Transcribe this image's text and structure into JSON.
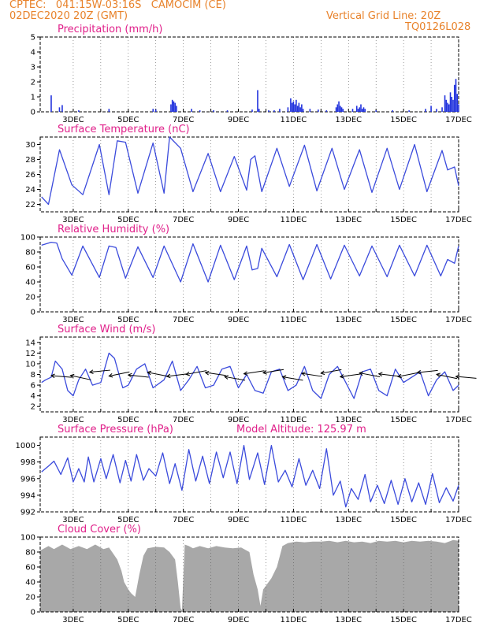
{
  "header": {
    "line1": "CPTEC:   041:15W-03:16S   CAMOCIM (CE)",
    "line2": "02DEC2020 20Z (GMT)",
    "right1": "Vertical Grid Line: 20Z",
    "right2": "TQ0126L028"
  },
  "colors": {
    "line": "#3b4bdc",
    "bar": "#2233dd",
    "cloud": "#a8a8a8",
    "header": "#e8822a",
    "title": "#e0208a"
  },
  "x_labels": [
    "3DEC",
    "5DEC",
    "7DEC",
    "9DEC",
    "11DEC",
    "13DEC",
    "15DEC",
    "17DEC"
  ],
  "chart_data": [
    {
      "id": "precip",
      "type": "bar",
      "title": "Precipitation (mm/h)",
      "ylim": [
        0,
        5
      ],
      "yticks": [
        "0",
        "1",
        "2",
        "3",
        "4",
        "5"
      ],
      "x_days": [
        2.2,
        2.5,
        2.6,
        3.2,
        4.3,
        5.9,
        6.0,
        6.55,
        6.6,
        6.65,
        6.7,
        6.75,
        7.3,
        7.6,
        8.1,
        8.6,
        9.5,
        9.7,
        9.75,
        10.1,
        10.3,
        10.5,
        10.8,
        10.9,
        10.95,
        11.0,
        11.05,
        11.1,
        11.15,
        11.2,
        11.25,
        11.3,
        11.35,
        11.6,
        11.9,
        12.2,
        12.55,
        12.6,
        12.65,
        12.7,
        12.75,
        12.8,
        13.15,
        13.3,
        13.35,
        13.4,
        13.45,
        13.5,
        13.55,
        13.6,
        14.0,
        14.6,
        15.2,
        15.8,
        16.0,
        16.2,
        16.4,
        16.5,
        16.55,
        16.6,
        16.65,
        16.7,
        16.75,
        16.8,
        16.85,
        16.9,
        16.95,
        17.0
      ],
      "values": [
        1.1,
        0.3,
        0.45,
        0.1,
        0.2,
        0.2,
        0.15,
        0.5,
        0.8,
        0.7,
        0.6,
        0.4,
        0.2,
        0.1,
        0.1,
        0.1,
        0.15,
        1.45,
        0.2,
        0.1,
        0.1,
        0.2,
        0.3,
        0.9,
        0.6,
        0.7,
        0.5,
        0.8,
        0.4,
        0.6,
        0.3,
        0.5,
        0.2,
        0.2,
        0.15,
        0.1,
        0.3,
        0.5,
        0.7,
        0.4,
        0.3,
        0.2,
        0.2,
        0.4,
        0.2,
        0.3,
        0.5,
        0.2,
        0.3,
        0.2,
        0.1,
        0.1,
        0.1,
        0.2,
        0.4,
        0.2,
        0.3,
        1.1,
        0.8,
        0.6,
        0.5,
        1.3,
        1.0,
        0.8,
        1.8,
        2.2,
        1.2,
        0.5
      ]
    },
    {
      "id": "temp",
      "type": "line",
      "title": "Surface Temperature (nC)",
      "ylim": [
        21,
        31
      ],
      "yticks": [
        "22",
        "24",
        "26",
        "28",
        "30"
      ],
      "x_days": [
        1.85,
        2.1,
        2.5,
        2.95,
        3.35,
        3.95,
        4.3,
        4.6,
        4.9,
        5.35,
        5.9,
        6.3,
        6.5,
        6.9,
        7.35,
        7.9,
        8.35,
        8.85,
        9.3,
        9.45,
        9.6,
        9.85,
        10.4,
        10.85,
        11.4,
        11.85,
        12.4,
        12.85,
        13.4,
        13.85,
        14.4,
        14.85,
        15.4,
        15.85,
        16.4,
        16.6,
        16.85,
        17.0
      ],
      "values": [
        23.0,
        22.0,
        29.3,
        24.6,
        23.3,
        30.0,
        23.3,
        30.5,
        30.3,
        23.5,
        30.2,
        23.5,
        31.0,
        29.5,
        23.7,
        28.8,
        23.7,
        28.4,
        23.9,
        28.0,
        28.5,
        23.7,
        29.5,
        24.4,
        29.9,
        23.8,
        29.5,
        24.0,
        29.3,
        23.6,
        29.5,
        24.0,
        30.0,
        23.7,
        29.2,
        26.6,
        27.0,
        24.5
      ]
    },
    {
      "id": "rh",
      "type": "line",
      "title": "Relative Humidity (%)",
      "ylim": [
        0,
        100
      ],
      "yticks": [
        "0",
        "20",
        "40",
        "60",
        "80",
        "100"
      ],
      "x_days": [
        1.85,
        2.2,
        2.4,
        2.6,
        2.95,
        3.35,
        3.95,
        4.3,
        4.55,
        4.9,
        5.35,
        5.9,
        6.3,
        6.9,
        7.35,
        7.9,
        8.35,
        8.85,
        9.3,
        9.5,
        9.7,
        9.85,
        10.4,
        10.85,
        11.35,
        11.85,
        12.35,
        12.85,
        13.4,
        13.85,
        14.4,
        14.85,
        15.4,
        15.85,
        16.35,
        16.6,
        16.85,
        17.0
      ],
      "values": [
        89.0,
        93.0,
        92.0,
        71.0,
        49.0,
        88.0,
        46.0,
        88.0,
        86.0,
        45.0,
        87.0,
        46.0,
        88.0,
        40.0,
        91.0,
        40.0,
        89.0,
        43.0,
        88.0,
        56.0,
        58.0,
        85.0,
        47.0,
        90.0,
        43.0,
        90.0,
        44.0,
        89.0,
        48.0,
        88.0,
        47.0,
        89.0,
        48.0,
        89.0,
        48.0,
        70.0,
        65.0,
        88.0
      ]
    },
    {
      "id": "wind",
      "type": "line",
      "title": "Surface Wind (m/s)",
      "ylim": [
        1,
        15
      ],
      "yticks": [
        "2",
        "4",
        "6",
        "8",
        "10",
        "12",
        "14"
      ],
      "x_days": [
        1.85,
        2.0,
        2.2,
        2.35,
        2.6,
        2.8,
        3.0,
        3.2,
        3.45,
        3.7,
        4.0,
        4.3,
        4.5,
        4.8,
        5.0,
        5.3,
        5.6,
        5.9,
        6.3,
        6.6,
        6.9,
        7.2,
        7.5,
        7.8,
        8.1,
        8.4,
        8.7,
        9.0,
        9.3,
        9.6,
        9.9,
        10.2,
        10.5,
        10.8,
        11.1,
        11.4,
        11.7,
        12.0,
        12.3,
        12.6,
        12.9,
        13.2,
        13.5,
        13.8,
        14.1,
        14.4,
        14.7,
        15.0,
        15.3,
        15.6,
        15.9,
        16.2,
        16.5,
        16.8,
        17.0
      ],
      "values": [
        6.5,
        7.0,
        7.5,
        10.5,
        9.0,
        5.0,
        4.0,
        7.0,
        9.0,
        6.0,
        6.5,
        12.0,
        11.0,
        5.5,
        6.0,
        9.0,
        10.0,
        5.5,
        7.0,
        10.5,
        5.0,
        7.0,
        9.5,
        5.5,
        6.0,
        9.0,
        9.5,
        5.5,
        8.0,
        5.0,
        4.5,
        8.5,
        9.0,
        5.0,
        6.0,
        9.5,
        5.0,
        3.5,
        8.0,
        9.5,
        6.5,
        3.5,
        8.5,
        9.0,
        5.0,
        4.0,
        9.0,
        6.5,
        7.5,
        8.5,
        4.0,
        7.0,
        8.5,
        5.0,
        6.0
      ]
    },
    {
      "id": "pressure",
      "type": "line",
      "title": "Surface Pressure (hPa)",
      "annotation": "Model Altitude: 125.97 m",
      "ylim": [
        992,
        1001
      ],
      "yticks": [
        "992",
        "994",
        "996",
        "998",
        "1000"
      ],
      "x_days": [
        1.85,
        2.1,
        2.3,
        2.55,
        2.8,
        3.0,
        3.2,
        3.4,
        3.55,
        3.75,
        4.0,
        4.2,
        4.45,
        4.7,
        4.9,
        5.1,
        5.3,
        5.55,
        5.75,
        6.0,
        6.25,
        6.5,
        6.7,
        6.95,
        7.2,
        7.45,
        7.7,
        7.95,
        8.2,
        8.45,
        8.7,
        8.95,
        9.2,
        9.4,
        9.7,
        9.95,
        10.2,
        10.45,
        10.7,
        10.95,
        11.2,
        11.45,
        11.7,
        11.95,
        12.2,
        12.45,
        12.7,
        12.9,
        13.1,
        13.35,
        13.6,
        13.8,
        14.05,
        14.3,
        14.55,
        14.8,
        15.05,
        15.3,
        15.55,
        15.8,
        16.05,
        16.3,
        16.55,
        16.8,
        17.0
      ],
      "values": [
        996.8,
        997.5,
        998.1,
        996.5,
        998.5,
        995.6,
        997.2,
        995.6,
        998.6,
        995.6,
        998.4,
        996.0,
        998.9,
        995.5,
        998.2,
        995.7,
        998.9,
        995.8,
        997.2,
        996.3,
        999.1,
        995.4,
        997.8,
        994.6,
        999.5,
        995.7,
        998.7,
        995.4,
        999.2,
        996.1,
        999.2,
        995.4,
        1000.0,
        995.9,
        999.1,
        995.3,
        1000.0,
        995.6,
        997.0,
        995.0,
        998.4,
        995.2,
        997.0,
        994.8,
        999.6,
        994.0,
        995.7,
        992.6,
        994.8,
        993.5,
        996.5,
        993.2,
        995.2,
        993.0,
        995.8,
        992.9,
        996.0,
        993.2,
        995.5,
        992.9,
        996.6,
        993.1,
        994.9,
        993.3,
        995.2
      ]
    },
    {
      "id": "cloud",
      "type": "area",
      "title": "Cloud Cover (%)",
      "ylim": [
        0,
        100
      ],
      "yticks": [
        "0",
        "20",
        "40",
        "60",
        "80",
        "100"
      ],
      "x_days": [
        1.8,
        2.1,
        2.3,
        2.6,
        2.9,
        3.2,
        3.5,
        3.8,
        4.1,
        4.3,
        4.6,
        4.75,
        4.85,
        5.0,
        5.1,
        5.25,
        5.4,
        5.55,
        5.7,
        6.0,
        6.3,
        6.5,
        6.7,
        6.8,
        6.9,
        6.95,
        7.05,
        7.2,
        7.35,
        7.6,
        7.9,
        8.2,
        8.5,
        8.8,
        9.1,
        9.4,
        9.55,
        9.7,
        9.8,
        9.9,
        10.0,
        10.2,
        10.4,
        10.6,
        10.8,
        11.1,
        11.4,
        11.7,
        12.0,
        12.3,
        12.6,
        12.9,
        13.2,
        13.5,
        13.8,
        14.1,
        14.4,
        14.7,
        15.0,
        15.3,
        15.6,
        15.9,
        16.2,
        16.5,
        16.8,
        17.0
      ],
      "values": [
        82,
        88,
        84,
        90,
        84,
        88,
        84,
        90,
        84,
        86,
        70,
        55,
        40,
        30,
        25,
        20,
        50,
        75,
        85,
        87,
        86,
        80,
        70,
        40,
        5,
        2,
        90,
        88,
        85,
        88,
        85,
        88,
        86,
        85,
        86,
        80,
        50,
        30,
        8,
        30,
        35,
        45,
        60,
        88,
        92,
        94,
        93,
        94,
        94,
        95,
        93,
        95,
        93,
        94,
        92,
        95,
        94,
        95,
        93,
        95,
        94,
        95,
        94,
        92,
        96,
        95
      ]
    }
  ]
}
